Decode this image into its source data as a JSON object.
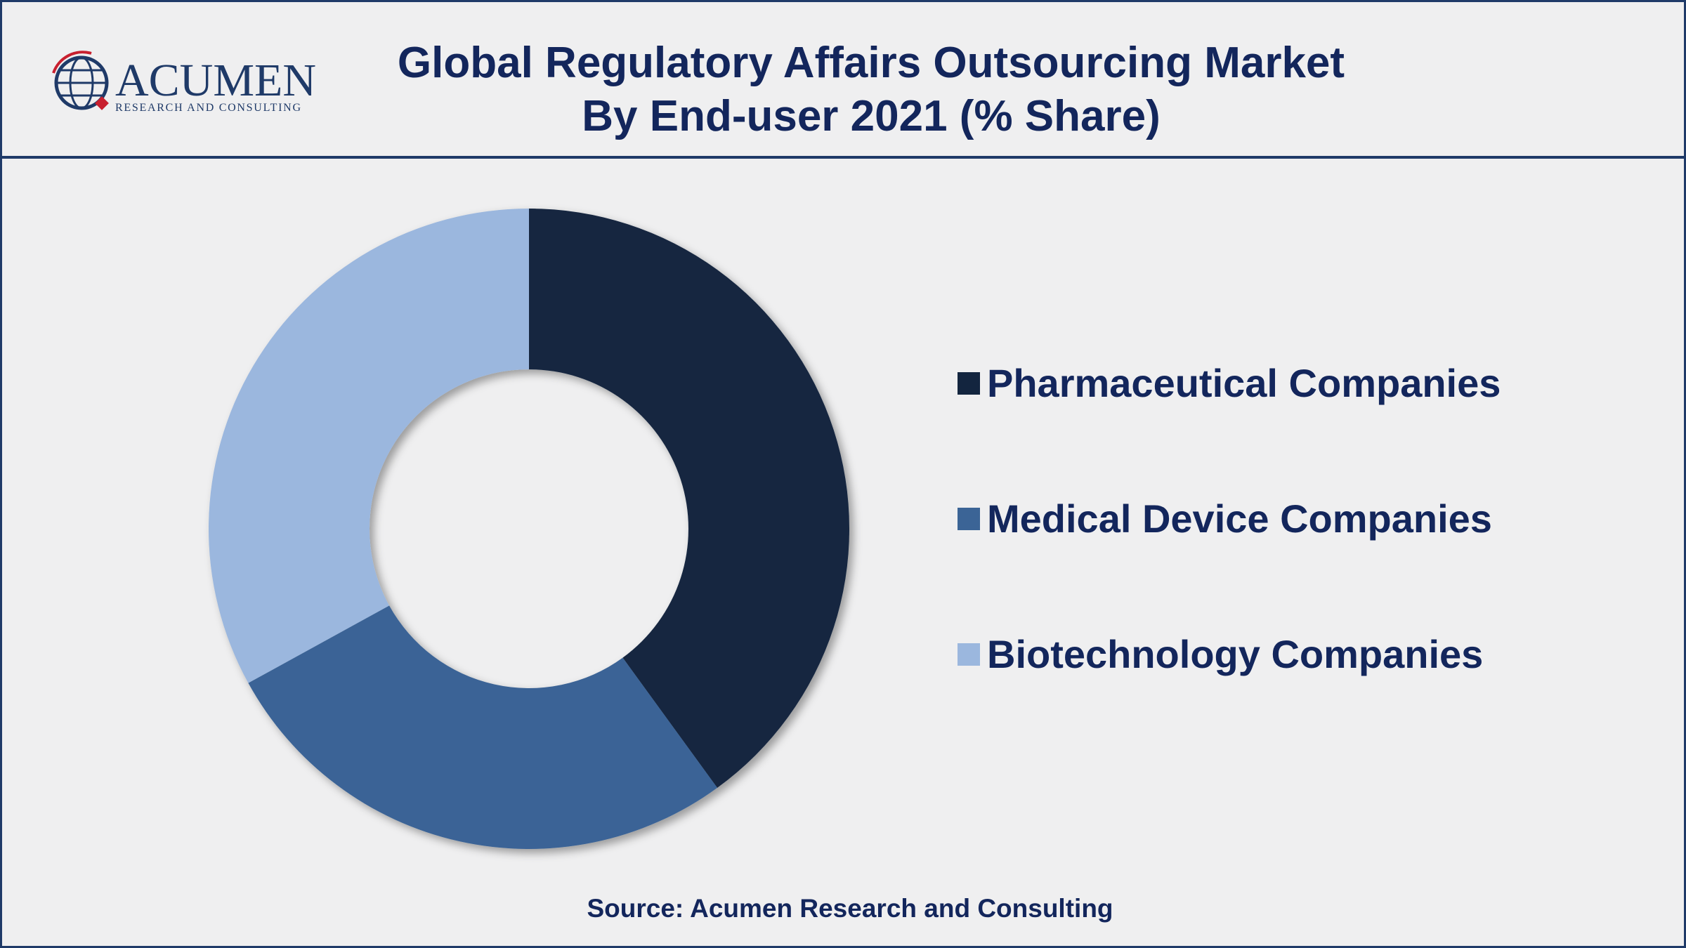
{
  "logo": {
    "name": "ACUMEN",
    "tagline": "RESEARCH AND CONSULTING"
  },
  "chart_data": {
    "type": "donut",
    "title": [
      "Global Regulatory Affairs Outsourcing Market",
      "By End-user 2021 (% Share)"
    ],
    "categories": [
      "Pharmaceutical Companies",
      "Medical Device Companies",
      "Biotechnology Companies"
    ],
    "values": [
      40,
      27,
      33
    ],
    "colors": [
      "#13253f",
      "#3b6496",
      "#9bb7de"
    ],
    "source": "Source: Acumen Research and Consulting"
  }
}
